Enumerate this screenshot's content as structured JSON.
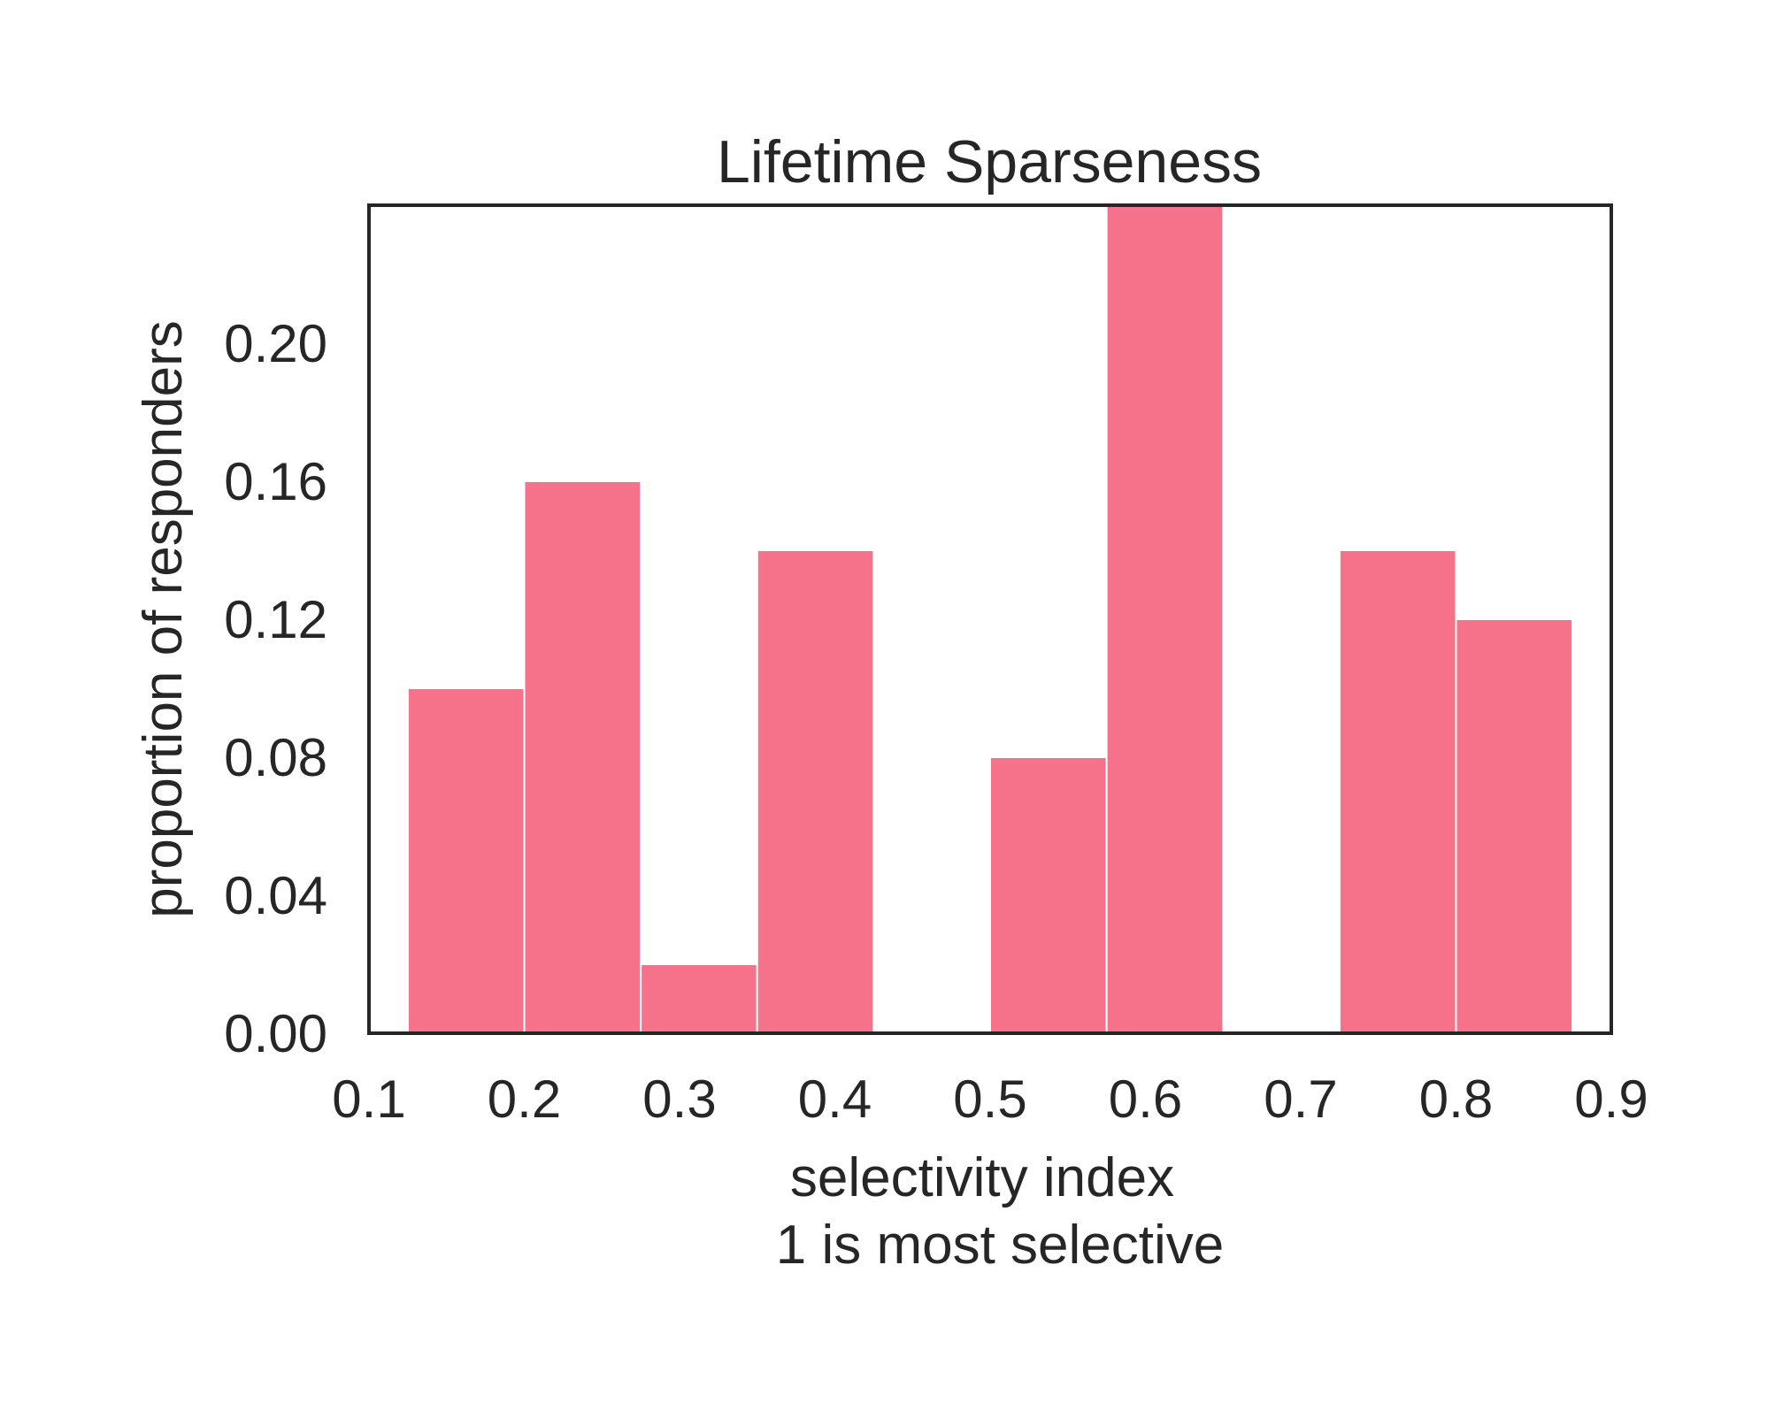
{
  "chart_data": {
    "type": "bar",
    "title": "Lifetime Sparseness",
    "xlabel": "selectivity index",
    "xlabel_line2": "1 is most selective",
    "ylabel": "proportion of responders",
    "xlim": [
      0.1,
      0.9
    ],
    "ylim": [
      0.0,
      0.24
    ],
    "x_ticks": [
      "0.1",
      "0.2",
      "0.3",
      "0.4",
      "0.5",
      "0.6",
      "0.7",
      "0.8",
      "0.9"
    ],
    "y_ticks": [
      "0.00",
      "0.04",
      "0.08",
      "0.12",
      "0.16",
      "0.20"
    ],
    "bin_edges": [
      0.125,
      0.2,
      0.275,
      0.35,
      0.425,
      0.5,
      0.575,
      0.65,
      0.725,
      0.8,
      0.875
    ],
    "values": [
      0.1,
      0.16,
      0.02,
      0.14,
      0.0,
      0.08,
      0.24,
      0.0,
      0.14,
      0.12
    ],
    "bar_color": "#f5728a",
    "grid": false
  }
}
